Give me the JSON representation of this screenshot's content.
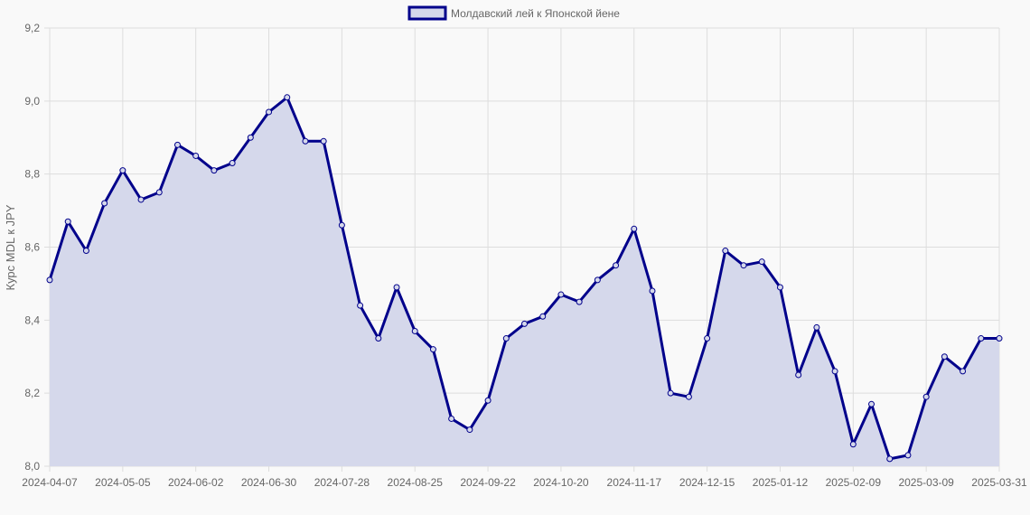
{
  "legend": {
    "label": "Молдавский лей к Японской йене"
  },
  "colors": {
    "line": "#00008b",
    "fill": "#d5d8eb",
    "grid": "#dddddd",
    "background": "#f9f9f9",
    "text": "#666666"
  },
  "chart_data": {
    "type": "area",
    "title": "",
    "xlabel": "",
    "ylabel": "Курс MDL к JPY",
    "ylim": [
      8.0,
      9.2
    ],
    "yticks": [
      "8,0",
      "8,2",
      "8,4",
      "8,6",
      "8,8",
      "9,0",
      "9,2"
    ],
    "xticks": [
      "2024-04-07",
      "2024-05-05",
      "2024-06-02",
      "2024-06-30",
      "2024-07-28",
      "2024-08-25",
      "2024-09-22",
      "2024-10-20",
      "2024-11-17",
      "2024-12-15",
      "2025-01-12",
      "2025-02-09",
      "2025-03-09",
      "2025-03-31"
    ],
    "grid": true,
    "legend_position": "top",
    "series": [
      {
        "name": "Молдавский лей к Японской йене",
        "values": [
          8.51,
          8.67,
          8.59,
          8.72,
          8.81,
          8.73,
          8.75,
          8.88,
          8.85,
          8.81,
          8.83,
          8.9,
          8.97,
          9.01,
          8.89,
          8.89,
          8.66,
          8.44,
          8.35,
          8.49,
          8.37,
          8.32,
          8.13,
          8.1,
          8.18,
          8.35,
          8.39,
          8.41,
          8.47,
          8.45,
          8.51,
          8.55,
          8.65,
          8.48,
          8.2,
          8.19,
          8.35,
          8.59,
          8.55,
          8.56,
          8.49,
          8.25,
          8.38,
          8.26,
          8.06,
          8.17,
          8.02,
          8.03,
          8.19,
          8.3,
          8.26,
          8.35,
          8.35
        ]
      }
    ]
  }
}
